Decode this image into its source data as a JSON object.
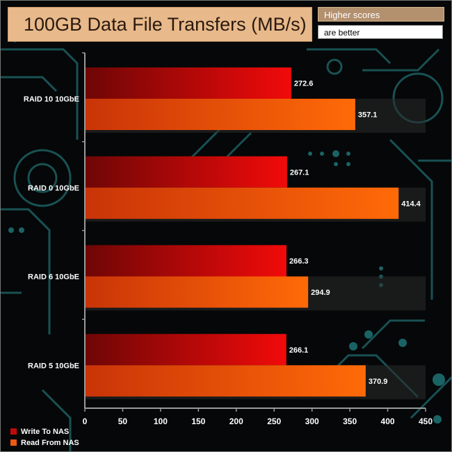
{
  "title": "100GB Data File Transfers (MB/s)",
  "note": {
    "line1": "Higher scores",
    "line2": "are better"
  },
  "colors": {
    "write_dark": "#6e0606",
    "write_light": "#f20a0a",
    "read_dark": "#c93408",
    "read_light": "#ff6a08",
    "axis": "#9a9a9a",
    "band": "#2a2a2a",
    "circuit": "#1f6e70"
  },
  "chart_data": {
    "type": "bar",
    "orientation": "horizontal",
    "categories": [
      "RAID 10 10GbE",
      "RAID 0 10GbE",
      "RAID 6 10GbE",
      "RAID 5 10GbE"
    ],
    "series": [
      {
        "name": "Write To NAS",
        "values": [
          272.6,
          267.1,
          266.3,
          266.1
        ]
      },
      {
        "name": "Read From NAS",
        "values": [
          357.1,
          414.4,
          294.9,
          370.9
        ]
      }
    ],
    "xlim": [
      0,
      450
    ],
    "xticks": [
      0,
      50,
      100,
      150,
      200,
      250,
      300,
      350,
      400,
      450
    ],
    "legend_position": "bottom-left",
    "grid": false
  }
}
